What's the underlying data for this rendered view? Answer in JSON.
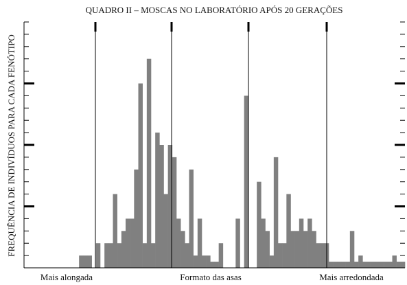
{
  "chart_data": {
    "type": "bar",
    "title": "QUADRO II – MOSCAS NO LABORATÓRIO APÓS 20 GERAÇÕES",
    "y_label": "FREQUÊNCIA DE INDIVÍDUOS PARA CADA FENÓTIPO",
    "x_labels": [
      "Mais alongada",
      "Formato das asas",
      "Mais arredondada"
    ],
    "values": [
      0,
      0,
      0,
      0,
      0,
      0,
      0,
      0,
      0,
      0,
      0,
      0,
      0,
      1,
      1,
      1,
      0,
      2,
      0,
      2,
      2,
      6,
      2,
      3,
      4,
      4,
      8,
      15,
      2,
      17,
      2,
      11,
      10,
      6,
      10,
      9,
      4,
      3,
      2,
      8,
      1,
      4,
      1,
      1,
      0.5,
      0.5,
      2,
      0,
      0,
      0,
      4,
      0,
      14,
      0,
      0,
      7,
      4,
      3,
      1,
      9,
      2,
      2,
      6,
      3,
      3,
      4,
      3,
      4,
      3,
      2,
      2,
      2,
      0.5,
      0.5,
      0.5,
      0.5,
      0.5,
      3,
      0.5,
      1,
      0.5,
      0.5,
      0.5,
      0.5,
      0.5,
      0.5,
      0.5,
      1,
      0.5,
      0.5
    ],
    "color": "#808080",
    "ylim": [
      0,
      20
    ],
    "yticks": [
      0,
      1,
      2,
      3,
      4,
      5,
      6,
      7,
      8,
      9,
      10,
      11,
      12,
      13,
      14,
      15,
      16,
      17,
      18,
      19,
      20
    ],
    "major_yticks": [
      5,
      10,
      15
    ]
  }
}
